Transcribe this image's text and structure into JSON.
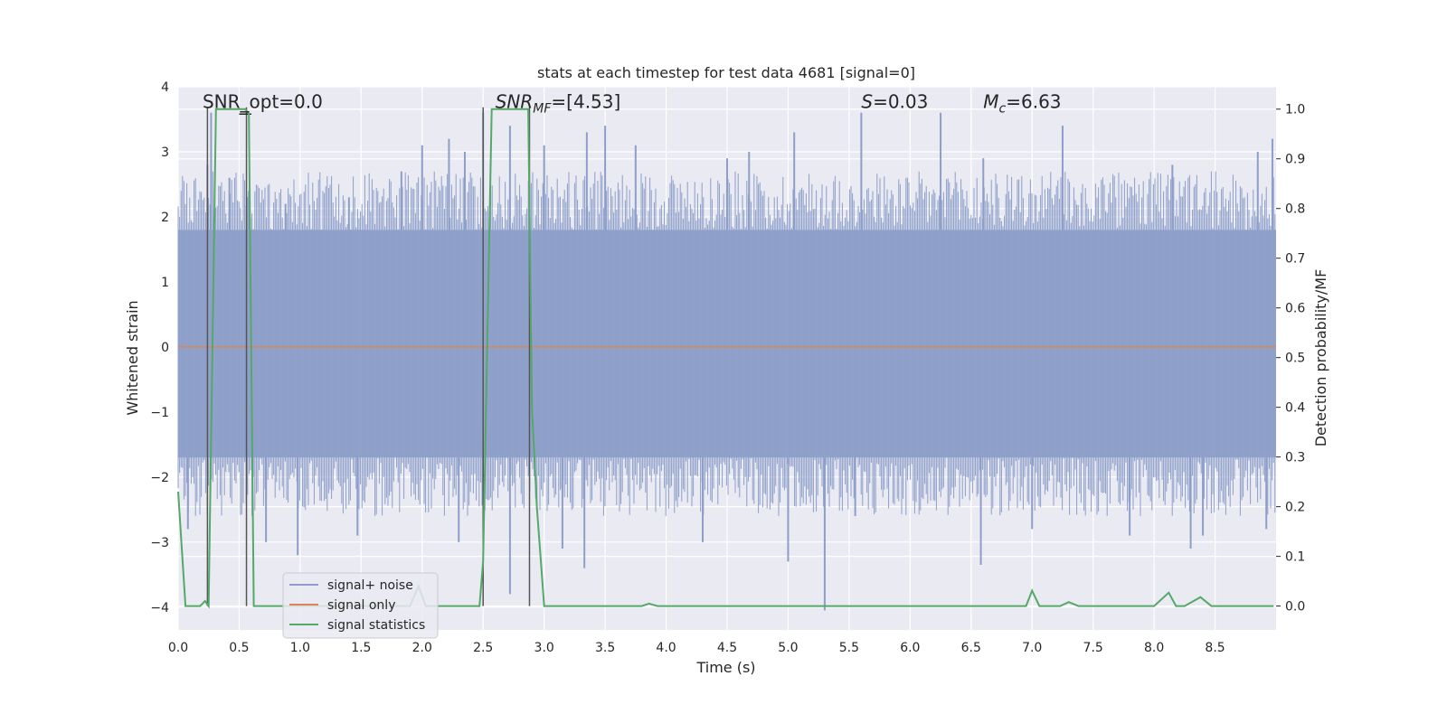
{
  "chart_data": {
    "type": "line",
    "title": "stats at each timestep for test data 4681 [signal=0]",
    "xlabel": "Time (s)",
    "ylabel_left": "Whitened strain",
    "ylabel_right": "Detection probability/MF",
    "xlim": [
      0.0,
      9.0
    ],
    "ylim_left": [
      -4.35,
      4.0
    ],
    "ylim_right": [
      -0.048,
      1.045
    ],
    "x_ticks": [
      "0.0",
      "0.5",
      "1.0",
      "1.5",
      "2.0",
      "2.5",
      "3.0",
      "3.5",
      "4.0",
      "4.5",
      "5.0",
      "5.5",
      "6.0",
      "6.5",
      "7.0",
      "7.5",
      "8.0",
      "8.5"
    ],
    "y_ticks_left": [
      "4",
      "3",
      "2",
      "1",
      "0",
      "−1",
      "−2",
      "−3",
      "−4"
    ],
    "y_ticks_right": [
      "1.0",
      "0.9",
      "0.8",
      "0.7",
      "0.6",
      "0.5",
      "0.4",
      "0.3",
      "0.2",
      "0.1",
      "0.0"
    ],
    "grid": true,
    "legend_placement": "lower-left",
    "colors": {
      "noise": "#8c9ec9",
      "signal": "#dd8452",
      "stats": "#55a868",
      "vline": "#555555",
      "background": "#eaeaf2",
      "grid": "#ffffff"
    },
    "annotations": [
      {
        "label": "SNR_opt=0.0",
        "x": 0.2,
        "y_right": 1.0
      },
      {
        "label": "SNR_MF=[4.53]",
        "x": 2.6,
        "y_right": 1.0
      },
      {
        "label": "S=0.03",
        "x": 5.6,
        "y_right": 1.0
      },
      {
        "label": "M_c=6.63",
        "x": 6.6,
        "y_right": 1.0
      }
    ],
    "vertical_lines": [
      0.24,
      0.56,
      2.5,
      2.88
    ],
    "series": [
      {
        "name": "signal+ noise",
        "axis": "left",
        "x": [
          0.0,
          9.0
        ],
        "y_envelope_upper": [
          1.8,
          1.8
        ],
        "y_envelope_lower": [
          -1.7,
          -1.7
        ],
        "spikes": [
          [
            0.24,
            2.8
          ],
          [
            0.27,
            3.6
          ],
          [
            0.42,
            2.6
          ],
          [
            0.58,
            2.4
          ],
          [
            0.88,
            2.2
          ],
          [
            1.4,
            2.3
          ],
          [
            1.83,
            2.7
          ],
          [
            2.0,
            3.1
          ],
          [
            2.22,
            3.2
          ],
          [
            2.35,
            3.0
          ],
          [
            2.5,
            3.6
          ],
          [
            2.72,
            3.4
          ],
          [
            3.0,
            3.1
          ],
          [
            3.35,
            3.3
          ],
          [
            3.5,
            3.4
          ],
          [
            3.75,
            3.1
          ],
          [
            4.5,
            2.9
          ],
          [
            4.68,
            3.0
          ],
          [
            5.05,
            3.3
          ],
          [
            5.6,
            3.6
          ],
          [
            6.25,
            3.6
          ],
          [
            6.6,
            2.9
          ],
          [
            7.25,
            3.4
          ],
          [
            8.15,
            2.8
          ],
          [
            8.85,
            3.0
          ],
          [
            8.97,
            3.2
          ],
          [
            0.08,
            -2.8
          ],
          [
            0.72,
            -3.0
          ],
          [
            0.98,
            -3.2
          ],
          [
            1.47,
            -2.9
          ],
          [
            2.3,
            -3.0
          ],
          [
            2.72,
            -3.8
          ],
          [
            3.15,
            -3.1
          ],
          [
            3.33,
            -3.4
          ],
          [
            4.3,
            -3.0
          ],
          [
            5.0,
            -3.3
          ],
          [
            5.3,
            -4.05
          ],
          [
            5.55,
            -2.6
          ],
          [
            6.58,
            -3.35
          ],
          [
            7.0,
            -2.8
          ],
          [
            7.8,
            -2.9
          ],
          [
            8.3,
            -3.1
          ],
          [
            8.4,
            -2.9
          ],
          [
            8.92,
            -2.8
          ]
        ]
      },
      {
        "name": "signal only",
        "axis": "left",
        "x": [
          0.0,
          9.0
        ],
        "y": [
          0.0,
          0.0
        ]
      },
      {
        "name": "signal statistics",
        "axis": "right",
        "x": [
          0.0,
          0.06,
          0.18,
          0.22,
          0.25,
          0.31,
          0.55,
          0.58,
          0.62,
          0.7,
          1.0,
          1.9,
          1.97,
          2.03,
          2.1,
          2.3,
          2.47,
          2.5,
          2.57,
          2.87,
          2.9,
          2.94,
          3.0,
          3.05,
          3.8,
          3.86,
          3.93,
          6.95,
          7.0,
          7.06,
          7.23,
          7.3,
          7.38,
          8.0,
          8.12,
          8.18,
          8.25,
          8.38,
          8.47,
          8.57,
          8.98
        ],
        "y": [
          0.23,
          0.0,
          0.0,
          0.01,
          0.0,
          1.0,
          1.0,
          0.99,
          0.0,
          0.0,
          0.0,
          0.0,
          0.04,
          0.0,
          0.0,
          0.0,
          0.0,
          0.09,
          1.0,
          1.0,
          0.4,
          0.2,
          0.0,
          0.0,
          0.0,
          0.005,
          0.0,
          0.0,
          0.031,
          0.0,
          0.0,
          0.008,
          0.0,
          0.0,
          0.027,
          0.0,
          0.0,
          0.018,
          0.0,
          0.0,
          0.0
        ]
      }
    ],
    "legend": [
      {
        "name": "signal+ noise",
        "color": "#8c9ec9"
      },
      {
        "name": "signal only",
        "color": "#dd8452"
      },
      {
        "name": "signal statistics",
        "color": "#55a868"
      }
    ]
  }
}
